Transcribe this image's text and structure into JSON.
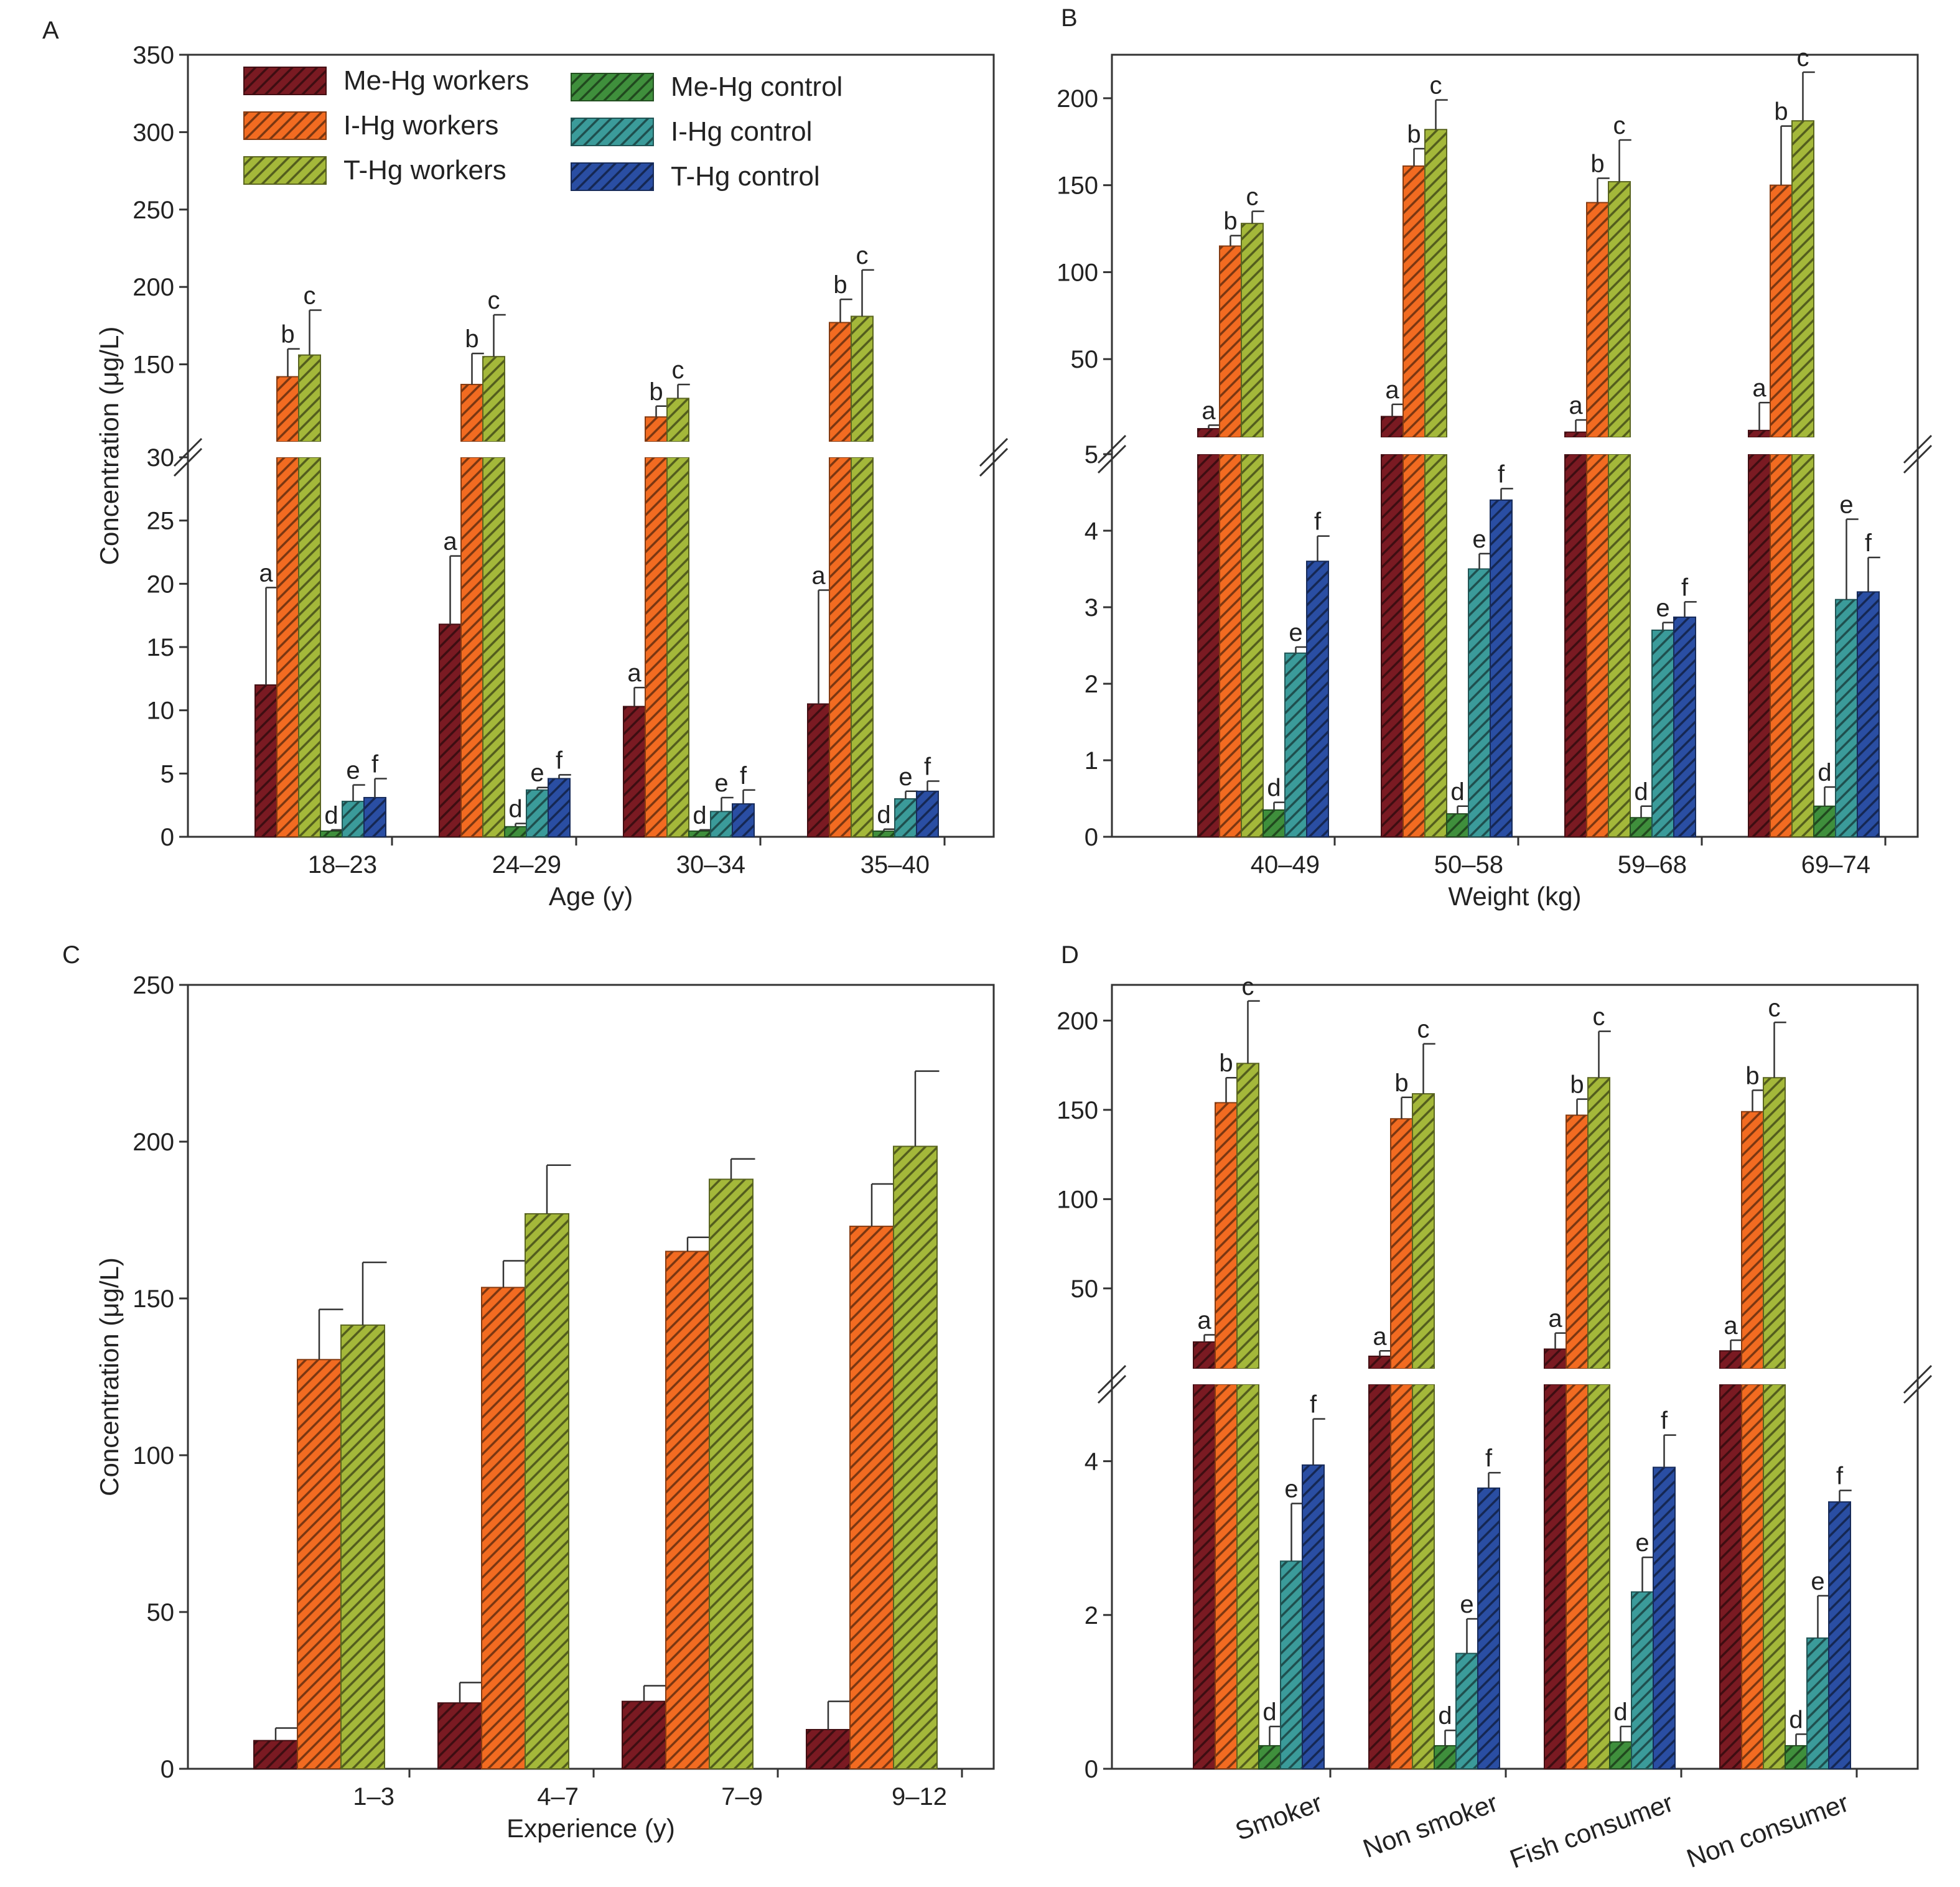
{
  "legend": {
    "position": "top-left",
    "entries": [
      {
        "key": "me_w",
        "label": "Me-Hg workers"
      },
      {
        "key": "i_w",
        "label": "I-Hg workers"
      },
      {
        "key": "t_w",
        "label": "T-Hg workers"
      },
      {
        "key": "me_c",
        "label": "Me-Hg control"
      },
      {
        "key": "i_c",
        "label": "I-Hg control"
      },
      {
        "key": "t_c",
        "label": "T-Hg control"
      }
    ]
  },
  "colors": {
    "me_w": "#7a1a22",
    "i_w": "#f26b21",
    "t_w": "#a4b83a",
    "me_c": "#3f8f3c",
    "i_c": "#3b9b9a",
    "t_c": "#2a4ea3"
  },
  "chart_data": [
    {
      "panel": "A",
      "type": "bar",
      "categories": [
        "18–23",
        "24–29",
        "30–34",
        "35–40"
      ],
      "xlabel": "Age (y)",
      "ylabel": "Concentration (μg/L)",
      "broken_axis": true,
      "lower_range": [
        0,
        30
      ],
      "upper_range": [
        100,
        350
      ],
      "lower_ticks": [
        "0",
        "5",
        "10",
        "15",
        "20",
        "25",
        "30"
      ],
      "upper_ticks": [
        "150",
        "200",
        "250",
        "300",
        "350"
      ],
      "grid": false,
      "series": [
        {
          "key": "me_w",
          "name": "Me-Hg workers",
          "values": [
            12.0,
            16.8,
            10.3,
            10.5
          ],
          "errors": [
            7.7,
            5.4,
            1.5,
            9.0
          ],
          "letter": "a"
        },
        {
          "key": "i_w",
          "name": "I-Hg workers",
          "values": [
            142,
            137,
            116,
            177
          ],
          "errors": [
            18,
            20,
            7,
            15
          ],
          "letter": "b"
        },
        {
          "key": "t_w",
          "name": "T-Hg workers",
          "values": [
            156,
            155,
            128,
            181
          ],
          "errors": [
            29,
            27,
            9,
            30
          ],
          "letter": "c"
        },
        {
          "key": "me_c",
          "name": "Me-Hg control",
          "values": [
            0.45,
            0.8,
            0.45,
            0.45
          ],
          "errors": [
            0.1,
            0.25,
            0.1,
            0.15
          ],
          "letter": "d"
        },
        {
          "key": "i_c",
          "name": "I-Hg control",
          "values": [
            2.8,
            3.7,
            2.0,
            3.0
          ],
          "errors": [
            1.3,
            0.2,
            1.1,
            0.6
          ],
          "letter": "e"
        },
        {
          "key": "t_c",
          "name": "T-Hg control",
          "values": [
            3.1,
            4.6,
            2.6,
            3.6
          ],
          "errors": [
            1.5,
            0.3,
            1.1,
            0.8
          ],
          "letter": "f"
        }
      ]
    },
    {
      "panel": "B",
      "type": "bar",
      "categories": [
        "40–49",
        "50–58",
        "59–68",
        "69–74"
      ],
      "xlabel": "Weight (kg)",
      "ylabel": "",
      "broken_axis": true,
      "lower_range": [
        0,
        5
      ],
      "upper_range": [
        5,
        225
      ],
      "lower_ticks": [
        "0",
        "1",
        "2",
        "3",
        "4",
        "5"
      ],
      "upper_ticks": [
        "50",
        "100",
        "150",
        "200"
      ],
      "grid": false,
      "series": [
        {
          "key": "me_w",
          "name": "Me-Hg workers",
          "values": [
            10,
            17,
            8,
            9
          ],
          "errors": [
            2,
            7,
            7,
            16
          ],
          "letter": "a"
        },
        {
          "key": "i_w",
          "name": "I-Hg workers",
          "values": [
            115,
            161,
            140,
            150
          ],
          "errors": [
            6,
            10,
            14,
            34
          ],
          "letter": "b"
        },
        {
          "key": "t_w",
          "name": "T-Hg workers",
          "values": [
            128,
            182,
            152,
            187
          ],
          "errors": [
            7,
            17,
            24,
            28
          ],
          "letter": "c"
        },
        {
          "key": "me_c",
          "name": "Me-Hg control",
          "values": [
            0.35,
            0.3,
            0.25,
            0.4
          ],
          "errors": [
            0.1,
            0.1,
            0.15,
            0.25
          ],
          "letter": "d"
        },
        {
          "key": "i_c",
          "name": "I-Hg control",
          "values": [
            2.4,
            3.5,
            2.7,
            3.1
          ],
          "errors": [
            0.08,
            0.2,
            0.1,
            1.05
          ],
          "letter": "e"
        },
        {
          "key": "t_c",
          "name": "T-Hg control",
          "values": [
            3.6,
            4.4,
            2.87,
            3.2
          ],
          "errors": [
            0.33,
            0.15,
            0.2,
            0.45
          ],
          "letter": "f"
        }
      ]
    },
    {
      "panel": "C",
      "type": "bar",
      "categories": [
        "1–3",
        "4–7",
        "7–9",
        "9–12"
      ],
      "xlabel": "Experience (y)",
      "ylabel": "Concentration (μg/L)",
      "broken_axis": false,
      "ylim": [
        0,
        250
      ],
      "ticks": [
        "0",
        "50",
        "100",
        "150",
        "200",
        "250"
      ],
      "grid": false,
      "series": [
        {
          "key": "me_w",
          "name": "Me-Hg workers",
          "values": [
            9,
            21,
            21.5,
            12.5
          ],
          "errors": [
            4,
            6.5,
            5,
            9
          ]
        },
        {
          "key": "i_w",
          "name": "I-Hg workers",
          "values": [
            130.5,
            153.5,
            165,
            173
          ],
          "errors": [
            16,
            8.5,
            4.5,
            13.5
          ]
        },
        {
          "key": "t_w",
          "name": "T-Hg workers",
          "values": [
            141.5,
            177,
            188,
            198.5
          ],
          "errors": [
            20,
            15.5,
            6.5,
            24
          ]
        }
      ]
    },
    {
      "panel": "D",
      "type": "bar",
      "categories": [
        "Smoker",
        "Non smoker",
        "Fish consumer",
        "Non consumer"
      ],
      "xlabel": "",
      "ylabel": "",
      "broken_axis": true,
      "lower_range": [
        0,
        5
      ],
      "upper_range": [
        5,
        220
      ],
      "lower_ticks": [
        "0",
        "2",
        "4"
      ],
      "upper_ticks": [
        "50",
        "100",
        "150",
        "200"
      ],
      "grid": false,
      "series": [
        {
          "key": "me_w",
          "name": "Me-Hg workers",
          "values": [
            20,
            12,
            16,
            15
          ],
          "errors": [
            4,
            3,
            9,
            6
          ],
          "letter": "a"
        },
        {
          "key": "i_w",
          "name": "I-Hg workers",
          "values": [
            154,
            145,
            147,
            149
          ],
          "errors": [
            14,
            12,
            9,
            12
          ],
          "letter": "b"
        },
        {
          "key": "t_w",
          "name": "T-Hg workers",
          "values": [
            176,
            159,
            168,
            168
          ],
          "errors": [
            35,
            28,
            26,
            31
          ],
          "letter": "c"
        },
        {
          "key": "me_c",
          "name": "Me-Hg control",
          "values": [
            0.3,
            0.3,
            0.35,
            0.3
          ],
          "errors": [
            0.25,
            0.2,
            0.2,
            0.15
          ],
          "letter": "d"
        },
        {
          "key": "i_c",
          "name": "I-Hg control",
          "values": [
            2.7,
            1.5,
            2.3,
            1.7
          ],
          "errors": [
            0.75,
            0.45,
            0.45,
            0.55
          ],
          "letter": "e"
        },
        {
          "key": "t_c",
          "name": "T-Hg control",
          "values": [
            3.95,
            3.65,
            3.92,
            3.47
          ],
          "errors": [
            0.6,
            0.2,
            0.42,
            0.15
          ],
          "letter": "f"
        }
      ]
    }
  ],
  "panels": {
    "A": {
      "label": "A"
    },
    "B": {
      "label": "B"
    },
    "C": {
      "label": "C"
    },
    "D": {
      "label": "D"
    }
  }
}
